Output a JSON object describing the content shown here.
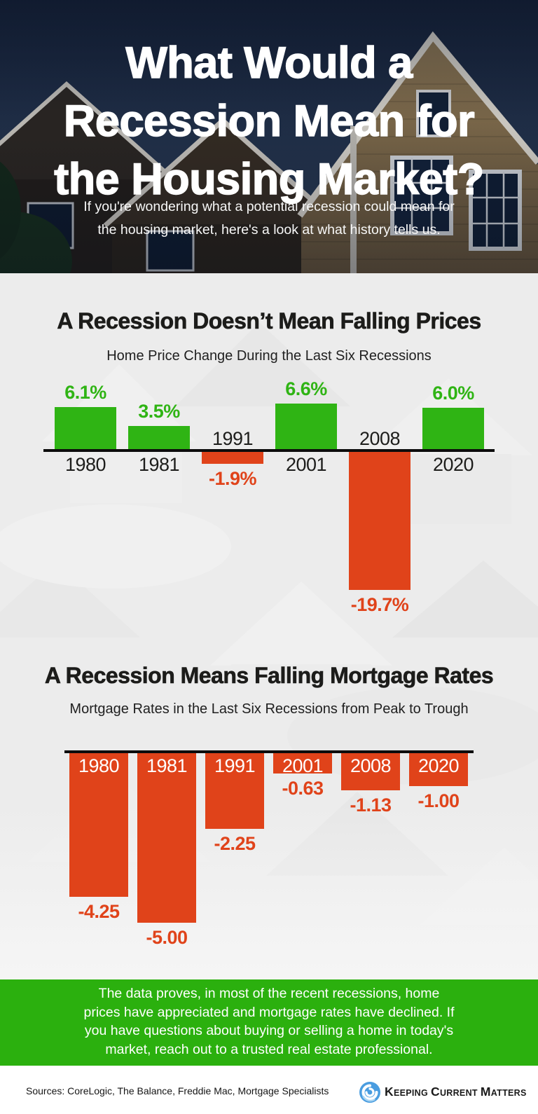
{
  "header": {
    "title": "What Would a\nRecession Mean for\nthe Housing Market?",
    "subtitle": "If you're wondering what a potential recession could mean for\nthe housing market, here's a look at what history tells us."
  },
  "chart_data": [
    {
      "type": "bar",
      "title": "A Recession Doesn’t Mean Falling Prices",
      "subtitle": "Home Price Change During the Last Six Recessions",
      "categories": [
        "1980",
        "1981",
        "1991",
        "2001",
        "2008",
        "2020"
      ],
      "values": [
        6.1,
        3.5,
        -1.9,
        6.6,
        -19.7,
        6.0
      ],
      "value_labels": [
        "6.1%",
        "3.5%",
        "-1.9%",
        "6.6%",
        "-19.7%",
        "6.0%"
      ],
      "ylim": [
        -20,
        7
      ],
      "grid": false,
      "legend": "none",
      "positive_color": "#2fb414",
      "negative_color": "#e0431a",
      "year_label_placement": "opposite side of axis from bar",
      "value_label_placement": "at bar end"
    },
    {
      "type": "bar",
      "title": "A Recession Means Falling Mortgage Rates",
      "subtitle": "Mortgage Rates in the Last Six Recessions from Peak to Trough",
      "categories": [
        "1980",
        "1981",
        "1991",
        "2001",
        "2008",
        "2020"
      ],
      "values": [
        -4.25,
        -5.0,
        -2.25,
        -0.63,
        -1.13,
        -1.0
      ],
      "value_labels": [
        "-4.25",
        "-5.00",
        "-2.25",
        "-0.63",
        "-1.13",
        "-1.00"
      ],
      "ylim": [
        -5.5,
        0
      ],
      "grid": false,
      "legend": "none",
      "positive_color": "#2fb414",
      "negative_color": "#e0431a",
      "year_label_placement": "inside top of bar",
      "value_label_placement": "below bar end"
    }
  ],
  "conclusion": {
    "text": "The data proves, in most of the recent recessions, home\nprices have appreciated and mortgage rates have declined. If\nyou have questions about buying or selling a home in today's\nmarket, reach out to a trusted real estate professional.",
    "background_color": "#2bb00e"
  },
  "footer": {
    "sources": "Sources: CoreLogic, The Balance, Freddie Mac, Mortgage Specialists",
    "brand_words": [
      "Keeping",
      "Current",
      "Matters"
    ],
    "logo_icon": "kcm-swirl-icon",
    "logo_color": "#4a9de0"
  }
}
